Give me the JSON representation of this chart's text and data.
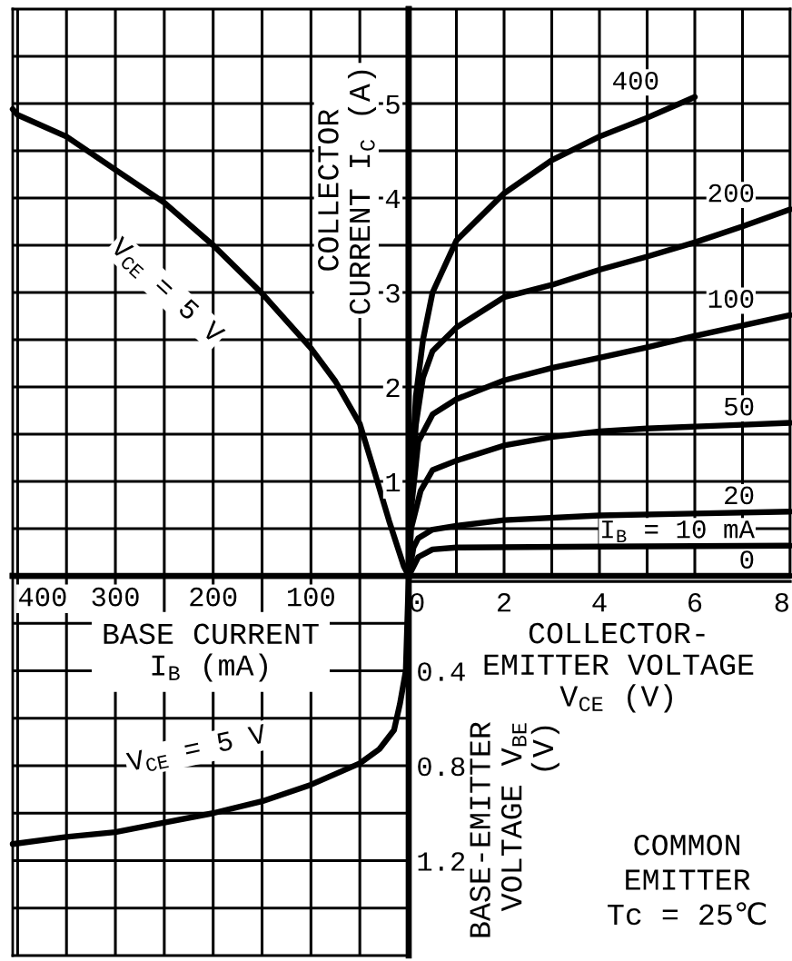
{
  "chart_data": [
    {
      "type": "line",
      "xlabel": "COLLECTOR-\nEMITTER VOLTAGE\nV$_{CE}$ (V)",
      "ylabel": "COLLECTOR\nCURRENT I$_{C}$ (A)",
      "annotations": [
        "COMMON\nEMITTER\nTc = 25℃"
      ],
      "xlim": [
        0,
        8
      ],
      "xticks": [
        0,
        {
          "value": 1,
          "label": null
        },
        2,
        {
          "value": 3,
          "label": null
        },
        4,
        {
          "value": 5,
          "label": null
        },
        6,
        {
          "value": 7,
          "label": null
        },
        8
      ],
      "ylim": [
        0,
        6
      ],
      "yticks": [
        {
          "value": 0.5,
          "label": null
        },
        1,
        {
          "value": 1.5,
          "label": null
        },
        2,
        {
          "value": 2.5,
          "label": null
        },
        3,
        {
          "value": 3.5,
          "label": null
        },
        4,
        {
          "value": 4.5,
          "label": null
        },
        5,
        {
          "value": 5.5,
          "label": null
        }
      ],
      "grid": true,
      "series": [
        {
          "name": "400",
          "color": "#000000",
          "x": [
            0,
            0.05,
            0.15,
            0.3,
            0.5,
            1,
            2,
            3,
            4,
            5,
            6
          ],
          "values": [
            0,
            1.0,
            1.9,
            2.5,
            3.0,
            3.55,
            4.05,
            4.4,
            4.65,
            4.85,
            5.07
          ]
        },
        {
          "name": "200",
          "color": "#000000",
          "x": [
            0,
            0.05,
            0.15,
            0.3,
            0.5,
            1,
            2,
            3,
            4,
            5,
            6,
            7,
            8
          ],
          "values": [
            0,
            0.9,
            1.6,
            2.1,
            2.38,
            2.63,
            2.95,
            3.08,
            3.24,
            3.38,
            3.53,
            3.7,
            3.88
          ]
        },
        {
          "name": "100",
          "color": "#000000",
          "x": [
            0,
            0.05,
            0.2,
            0.5,
            1,
            2,
            3,
            4,
            5,
            6,
            7,
            8
          ],
          "values": [
            0,
            0.7,
            1.42,
            1.71,
            1.87,
            2.07,
            2.2,
            2.31,
            2.42,
            2.54,
            2.65,
            2.76
          ]
        },
        {
          "name": "50",
          "color": "#000000",
          "x": [
            0,
            0.05,
            0.25,
            0.5,
            1,
            2,
            3,
            4,
            5,
            6,
            7,
            8
          ],
          "values": [
            0,
            0.5,
            0.9,
            1.12,
            1.22,
            1.38,
            1.47,
            1.53,
            1.56,
            1.58,
            1.6,
            1.62
          ]
        },
        {
          "name": "20",
          "color": "#000000",
          "x": [
            0,
            0.1,
            0.2,
            0.5,
            1,
            2,
            4,
            6,
            8
          ],
          "values": [
            0,
            0.3,
            0.4,
            0.49,
            0.53,
            0.59,
            0.64,
            0.66,
            0.68
          ]
        },
        {
          "name": "I$_{B}$ = 10 mA",
          "color": "#000000",
          "x": [
            0,
            0.2,
            0.5,
            1,
            4,
            8
          ],
          "values": [
            0,
            0.2,
            0.28,
            0.3,
            0.31,
            0.32
          ]
        },
        {
          "name": "0",
          "color": "#000000",
          "x": [
            0,
            8
          ],
          "values": [
            0,
            0
          ]
        }
      ]
    },
    {
      "type": "line",
      "xlabel": "BASE CURRENT\nI$_{B}$ (mA)",
      "xlim": [
        405,
        0
      ],
      "xticks": [
        400,
        {
          "value": 350,
          "label": null
        },
        300,
        {
          "value": 250,
          "label": null
        },
        200,
        {
          "value": 150,
          "label": null
        },
        100,
        {
          "value": 50,
          "label": null
        }
      ],
      "ylim": [
        0,
        6
      ],
      "yticks": [
        0.5,
        1,
        1.5,
        2,
        2.5,
        3,
        3.5,
        4,
        4.5,
        5,
        5.5
      ],
      "tick_labels": "x",
      "grid": true,
      "series": [
        {
          "name": "V$_{CE}$ = 5 V",
          "color": "#000000",
          "x": [
            405,
            400,
            350,
            300,
            250,
            200,
            150,
            100,
            75,
            50,
            35,
            20,
            5,
            0
          ],
          "values": [
            4.94,
            4.88,
            4.65,
            4.3,
            3.95,
            3.5,
            2.99,
            2.41,
            2.06,
            1.61,
            1.1,
            0.58,
            0.1,
            0
          ]
        }
      ]
    },
    {
      "type": "line",
      "ylabel": "BASE-EMITTER\nVOLTAGE V$_{BE}$\n(V)",
      "xlim": [
        405,
        0
      ],
      "xticks": [
        400,
        350,
        300,
        250,
        200,
        150,
        100,
        50
      ],
      "ylim": [
        1.6,
        0
      ],
      "yticks": [
        {
          "value": 0.2,
          "label": null
        },
        0.4,
        {
          "value": 0.6,
          "label": null
        },
        0.8,
        {
          "value": 1.0,
          "label": null
        },
        1.2,
        {
          "value": 1.4,
          "label": null
        }
      ],
      "tick_labels": "y",
      "grid": true,
      "series": [
        {
          "name": "V$_{CE}$ = 5 V",
          "color": "#000000",
          "x": [
            405,
            350,
            300,
            250,
            200,
            150,
            100,
            50,
            30,
            15,
            9,
            3,
            0
          ],
          "values": [
            1.13,
            1.1,
            1.08,
            1.04,
            1.0,
            0.95,
            0.88,
            0.79,
            0.73,
            0.65,
            0.54,
            0.4,
            0
          ]
        }
      ]
    }
  ]
}
